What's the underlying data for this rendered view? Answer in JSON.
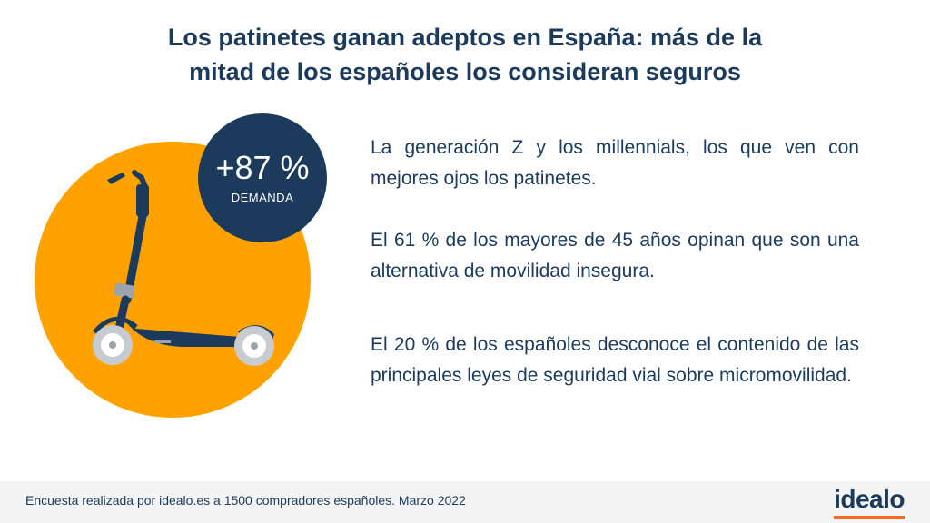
{
  "title": {
    "line1": "Los patinetes ganan adeptos en España: más de la",
    "line2": "mitad de los españoles los consideran seguros"
  },
  "badge": {
    "value": "+87 %",
    "label": "DEMANDA"
  },
  "points": [
    "La generación Z y los millennials, los que ven con mejores ojos los patinetes.",
    "El 61 % de los mayores de 45 años opinan que son una alternativa de movilidad insegura.",
    "El 20 % de los españoles desconoce el contenido de las principales leyes de seguridad vial sobre micromovilidad."
  ],
  "footer": {
    "source": "Encuesta realizada por idealo.es a 1500 compradores españoles. Marzo 2022",
    "logo": "idealo"
  },
  "colors": {
    "navy": "#1b3a5c",
    "orange_circle": "#ffa200",
    "logo_accent": "#f26a21"
  },
  "icons": [
    "scooter-icon"
  ]
}
